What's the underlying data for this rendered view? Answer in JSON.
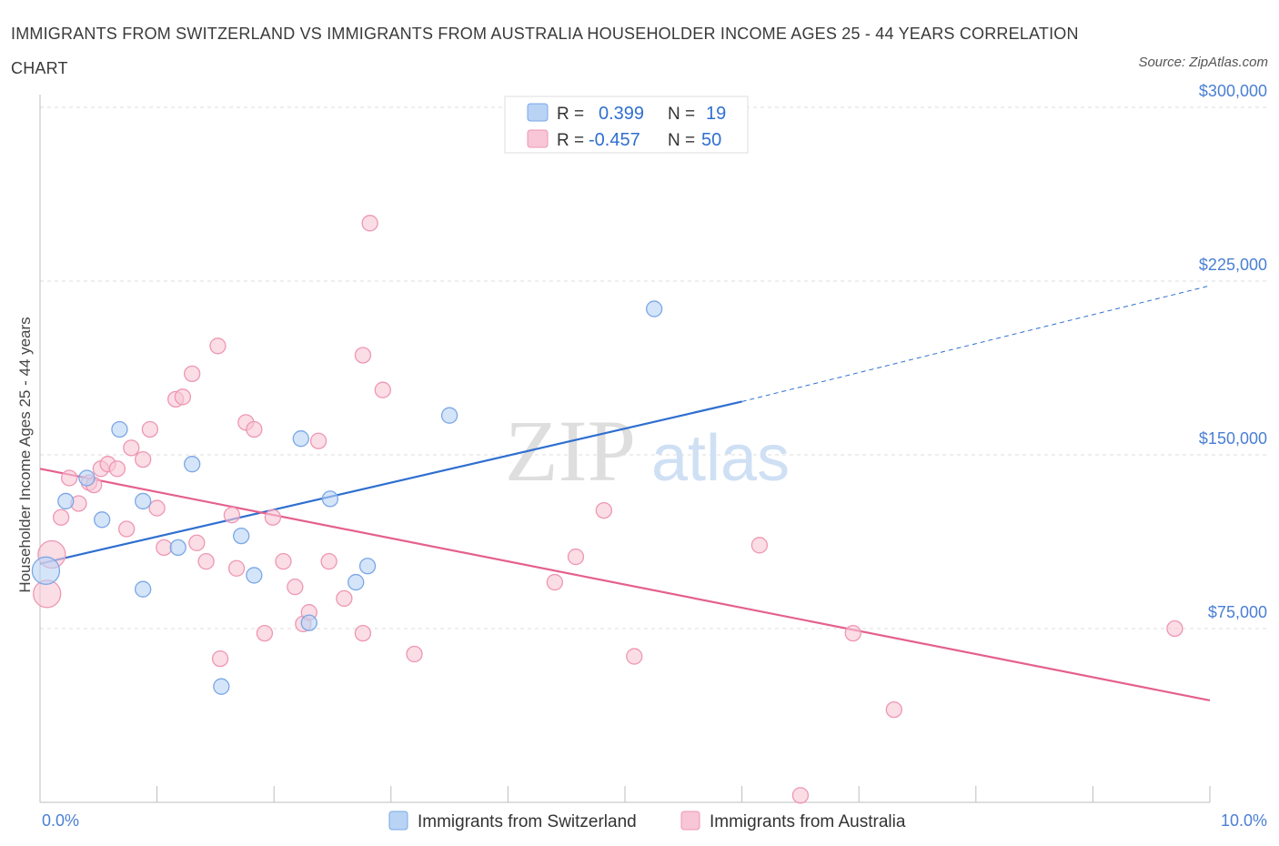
{
  "title": "IMMIGRANTS FROM SWITZERLAND VS IMMIGRANTS FROM AUSTRALIA HOUSEHOLDER INCOME AGES 25 - 44 YEARS CORRELATION CHART",
  "source": "Source: ZipAtlas.com",
  "watermark": {
    "zip": "ZIP",
    "atlas": "atlas"
  },
  "legend": {
    "r_label": "R =",
    "n_label": "N =",
    "rows": [
      {
        "r": "0.399",
        "n": "19"
      },
      {
        "r": "-0.457",
        "n": "50"
      }
    ]
  },
  "colors": {
    "switzerland_fill": "#b9d3f5",
    "switzerland_stroke": "#7aa7e6",
    "switzerland_line": "#2f6fd0",
    "australia_fill": "#f8c6d6",
    "australia_stroke": "#ee97b3",
    "australia_line": "#e4608e",
    "axis_label": "#4a7fd4",
    "grid": "#dddddd"
  },
  "chart_data": {
    "type": "scatter",
    "title": "IMMIGRANTS FROM SWITZERLAND VS IMMIGRANTS FROM AUSTRALIA HOUSEHOLDER INCOME AGES 25 - 44 YEARS CORRELATION CHART",
    "xlabel": "",
    "ylabel": "Householder Income Ages 25 - 44 years",
    "xlim": [
      0,
      10
    ],
    "ylim": [
      0,
      300000
    ],
    "x_tick_labels": [
      "0.0%",
      "10.0%"
    ],
    "y_ticks": [
      75000,
      150000,
      225000,
      300000
    ],
    "y_tick_labels": [
      "$75,000",
      "$150,000",
      "$225,000",
      "$300,000"
    ],
    "grid": true,
    "legend_position": "top-center",
    "series": [
      {
        "name": "Immigrants from Switzerland",
        "r": 0.399,
        "n": 19,
        "trend": {
          "x0": 0,
          "y0": 103000,
          "x1": 6.0,
          "y1": 173000,
          "dashed_to": 10.0,
          "dashed_y": 223000
        },
        "points": [
          {
            "x": 0.05,
            "y": 100000,
            "big": true
          },
          {
            "x": 0.22,
            "y": 130000
          },
          {
            "x": 0.4,
            "y": 140000
          },
          {
            "x": 0.53,
            "y": 122000
          },
          {
            "x": 0.68,
            "y": 161000
          },
          {
            "x": 0.88,
            "y": 130000
          },
          {
            "x": 1.3,
            "y": 146000
          },
          {
            "x": 0.88,
            "y": 92000
          },
          {
            "x": 1.18,
            "y": 110000
          },
          {
            "x": 1.72,
            "y": 115000
          },
          {
            "x": 1.83,
            "y": 98000
          },
          {
            "x": 2.23,
            "y": 157000
          },
          {
            "x": 2.48,
            "y": 131000
          },
          {
            "x": 2.8,
            "y": 102000
          },
          {
            "x": 2.7,
            "y": 95000
          },
          {
            "x": 2.3,
            "y": 77500
          },
          {
            "x": 1.55,
            "y": 50000
          },
          {
            "x": 3.5,
            "y": 167000
          },
          {
            "x": 5.25,
            "y": 213000
          }
        ]
      },
      {
        "name": "Immigrants from Australia",
        "r": -0.457,
        "n": 50,
        "trend": {
          "x0": 0,
          "y0": 144000,
          "x1": 10.0,
          "y1": 44000
        },
        "points": [
          {
            "x": 0.06,
            "y": 90000,
            "big": true
          },
          {
            "x": 0.1,
            "y": 107000,
            "big": true
          },
          {
            "x": 0.18,
            "y": 123000
          },
          {
            "x": 0.25,
            "y": 140000
          },
          {
            "x": 0.33,
            "y": 129000
          },
          {
            "x": 0.42,
            "y": 138000
          },
          {
            "x": 0.46,
            "y": 137000
          },
          {
            "x": 0.52,
            "y": 144000
          },
          {
            "x": 0.58,
            "y": 146000
          },
          {
            "x": 0.66,
            "y": 144000
          },
          {
            "x": 0.74,
            "y": 118000
          },
          {
            "x": 0.78,
            "y": 153000
          },
          {
            "x": 0.88,
            "y": 148000
          },
          {
            "x": 0.94,
            "y": 161000
          },
          {
            "x": 1.0,
            "y": 127000
          },
          {
            "x": 1.06,
            "y": 110000
          },
          {
            "x": 1.16,
            "y": 174000
          },
          {
            "x": 1.22,
            "y": 175000
          },
          {
            "x": 1.3,
            "y": 185000
          },
          {
            "x": 1.34,
            "y": 112000
          },
          {
            "x": 1.42,
            "y": 104000
          },
          {
            "x": 1.52,
            "y": 197000
          },
          {
            "x": 1.54,
            "y": 62000
          },
          {
            "x": 1.64,
            "y": 124000
          },
          {
            "x": 1.68,
            "y": 101000
          },
          {
            "x": 1.76,
            "y": 164000
          },
          {
            "x": 1.83,
            "y": 161000
          },
          {
            "x": 1.92,
            "y": 73000
          },
          {
            "x": 1.99,
            "y": 123000
          },
          {
            "x": 2.08,
            "y": 104000
          },
          {
            "x": 2.18,
            "y": 93000
          },
          {
            "x": 2.25,
            "y": 77000
          },
          {
            "x": 2.3,
            "y": 82000
          },
          {
            "x": 2.38,
            "y": 156000
          },
          {
            "x": 2.47,
            "y": 104000
          },
          {
            "x": 2.6,
            "y": 88000
          },
          {
            "x": 2.76,
            "y": 73000
          },
          {
            "x": 2.76,
            "y": 193000
          },
          {
            "x": 2.82,
            "y": 250000
          },
          {
            "x": 2.93,
            "y": 178000
          },
          {
            "x": 3.2,
            "y": 64000
          },
          {
            "x": 4.4,
            "y": 95000
          },
          {
            "x": 4.58,
            "y": 106000
          },
          {
            "x": 4.82,
            "y": 126000
          },
          {
            "x": 5.08,
            "y": 63000
          },
          {
            "x": 6.15,
            "y": 111000
          },
          {
            "x": 6.95,
            "y": 73000
          },
          {
            "x": 7.3,
            "y": 40000
          },
          {
            "x": 6.5,
            "y": 3000
          },
          {
            "x": 9.7,
            "y": 75000
          }
        ]
      }
    ]
  }
}
